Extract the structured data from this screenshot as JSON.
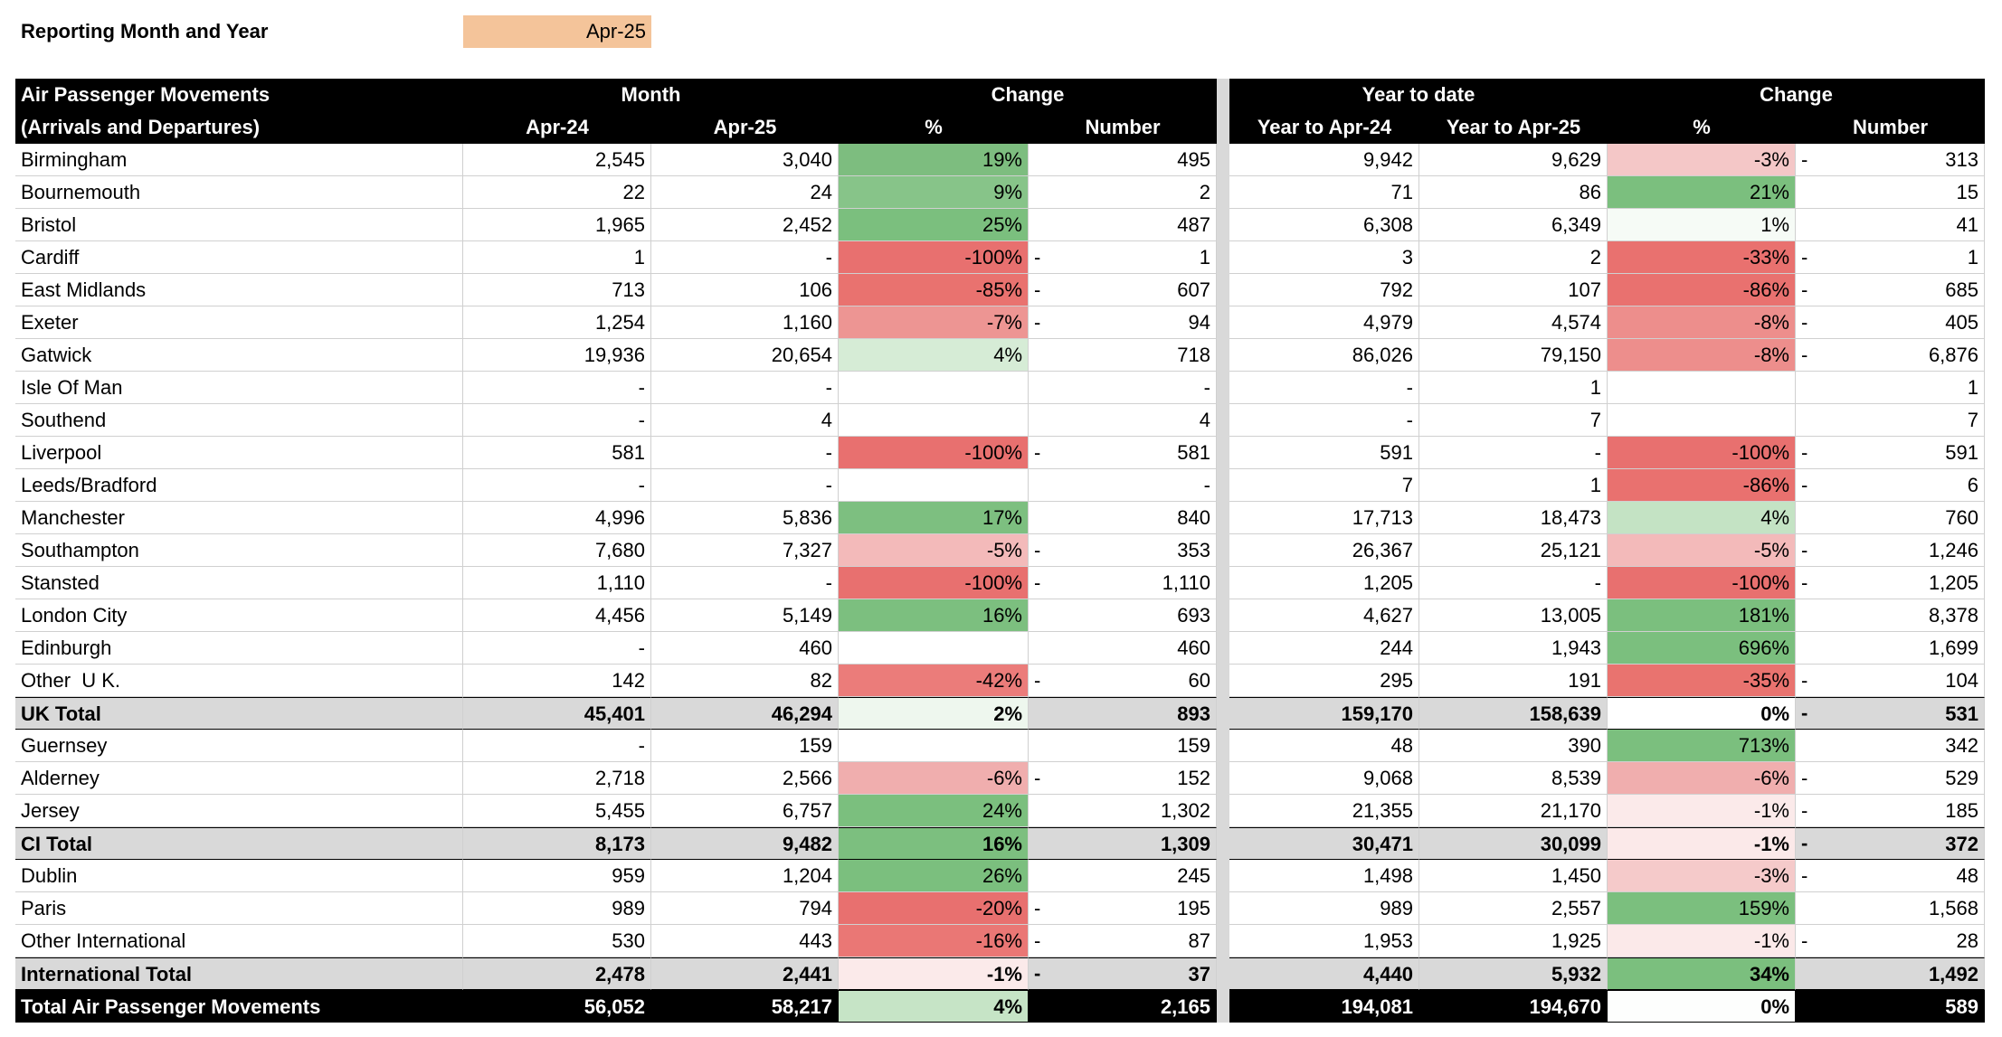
{
  "header": {
    "label": "Reporting Month and Year",
    "value": "Apr-25",
    "value_fill": "#f4c49a"
  },
  "table": {
    "columns": [
      "name",
      "m24",
      "m25",
      "pct",
      "num",
      "ytd24",
      "ytd25",
      "ytdpct",
      "ytdnum"
    ],
    "header_top": [
      {
        "text": "Air Passenger Movements",
        "from": 0,
        "to": 0,
        "align": "left"
      },
      {
        "text": "Month",
        "from": 1,
        "to": 2
      },
      {
        "text": "Change",
        "from": 3,
        "to": 4
      },
      {
        "text": "Year to date",
        "from": 5,
        "to": 6
      },
      {
        "text": "Change",
        "from": 7,
        "to": 8
      }
    ],
    "header_bottom": [
      "(Arrivals and Departures)",
      "Apr-24",
      "Apr-25",
      "%",
      "Number",
      "Year to Apr-24",
      "Year to Apr-25",
      "%",
      "Number"
    ],
    "rows": [
      {
        "name": "Birmingham",
        "m24": "2,545",
        "m25": "3,040",
        "pct": "19%",
        "pct_fill": "#7dbd7f",
        "num": "495",
        "ytd24": "9,942",
        "ytd25": "9,629",
        "ytdpct": "-3%",
        "ytdpct_fill": "#f4c7c7",
        "ytdnum_sign": "-",
        "ytdnum": "313"
      },
      {
        "name": "Bournemouth",
        "m24": "22",
        "m25": "24",
        "pct": "9%",
        "pct_fill": "#87c489",
        "num": "2",
        "ytd24": "71",
        "ytd25": "86",
        "ytdpct": "21%",
        "ytdpct_fill": "#7bbf7e",
        "ytdnum": "15"
      },
      {
        "name": "Bristol",
        "m24": "1,965",
        "m25": "2,452",
        "pct": "25%",
        "pct_fill": "#7bbf7e",
        "num": "487",
        "ytd24": "6,308",
        "ytd25": "6,349",
        "ytdpct": "1%",
        "ytdpct_fill": "#f6fbf6",
        "ytdnum": "41"
      },
      {
        "name": "Cardiff",
        "m24": "1",
        "m25": "-",
        "pct": "-100%",
        "pct_fill": "#e8706f",
        "num_sign": "-",
        "num": "1",
        "ytd24": "3",
        "ytd25": "2",
        "ytdpct": "-33%",
        "ytdpct_fill": "#e9716f",
        "ytdnum_sign": "-",
        "ytdnum": "1"
      },
      {
        "name": "East Midlands",
        "m24": "713",
        "m25": "106",
        "pct": "-85%",
        "pct_fill": "#e9726f",
        "num_sign": "-",
        "num": "607",
        "ytd24": "792",
        "ytd25": "107",
        "ytdpct": "-86%",
        "ytdpct_fill": "#e9716f",
        "ytdnum_sign": "-",
        "ytdnum": "685"
      },
      {
        "name": "Exeter",
        "m24": "1,254",
        "m25": "1,160",
        "pct": "-7%",
        "pct_fill": "#ed9593",
        "num_sign": "-",
        "num": "94",
        "ytd24": "4,979",
        "ytd25": "4,574",
        "ytdpct": "-8%",
        "ytdpct_fill": "#ed8e8c",
        "ytdnum_sign": "-",
        "ytdnum": "405"
      },
      {
        "name": "Gatwick",
        "m24": "19,936",
        "m25": "20,654",
        "pct": "4%",
        "pct_fill": "#d6ecd6",
        "num": "718",
        "ytd24": "86,026",
        "ytd25": "79,150",
        "ytdpct": "-8%",
        "ytdpct_fill": "#ed8e8c",
        "ytdnum_sign": "-",
        "ytdnum": "6,876"
      },
      {
        "name": "Isle Of Man",
        "m24": "-",
        "m25": "-",
        "num": "-",
        "ytd24": "-",
        "ytd25": "1",
        "ytdnum": "1"
      },
      {
        "name": "Southend",
        "m24": "-",
        "m25": "4",
        "num": "4",
        "ytd24": "-",
        "ytd25": "7",
        "ytdnum": "7"
      },
      {
        "name": "Liverpool",
        "m24": "581",
        "m25": "-",
        "pct": "-100%",
        "pct_fill": "#e8706f",
        "num_sign": "-",
        "num": "581",
        "ytd24": "591",
        "ytd25": "-",
        "ytdpct": "-100%",
        "ytdpct_fill": "#e8706f",
        "ytdnum_sign": "-",
        "ytdnum": "591"
      },
      {
        "name": "Leeds/Bradford",
        "m24": "-",
        "m25": "-",
        "num": "-",
        "ytd24": "7",
        "ytd25": "1",
        "ytdpct": "-86%",
        "ytdpct_fill": "#e9716f",
        "ytdnum_sign": "-",
        "ytdnum": "6"
      },
      {
        "name": "Manchester",
        "m24": "4,996",
        "m25": "5,836",
        "pct": "17%",
        "pct_fill": "#7dbf80",
        "num": "840",
        "ytd24": "17,713",
        "ytd25": "18,473",
        "ytdpct": "4%",
        "ytdpct_fill": "#c4e3c4",
        "ytdnum": "760"
      },
      {
        "name": "Southampton",
        "m24": "7,680",
        "m25": "7,327",
        "pct": "-5%",
        "pct_fill": "#f3baba",
        "num_sign": "-",
        "num": "353",
        "ytd24": "26,367",
        "ytd25": "25,121",
        "ytdpct": "-5%",
        "ytdpct_fill": "#f3baba",
        "ytdnum_sign": "-",
        "ytdnum": "1,246"
      },
      {
        "name": "Stansted",
        "m24": "1,110",
        "m25": "-",
        "pct": "-100%",
        "pct_fill": "#e8706f",
        "num_sign": "-",
        "num": "1,110",
        "ytd24": "1,205",
        "ytd25": "-",
        "ytdpct": "-100%",
        "ytdpct_fill": "#e8706f",
        "ytdnum_sign": "-",
        "ytdnum": "1,205"
      },
      {
        "name": "London City",
        "m24": "4,456",
        "m25": "5,149",
        "pct": "16%",
        "pct_fill": "#7cbf7f",
        "num": "693",
        "ytd24": "4,627",
        "ytd25": "13,005",
        "ytdpct": "181%",
        "ytdpct_fill": "#7bbf7e",
        "ytdnum": "8,378"
      },
      {
        "name": "Edinburgh",
        "m24": "-",
        "m25": "460",
        "num": "460",
        "ytd24": "244",
        "ytd25": "1,943",
        "ytdpct": "696%",
        "ytdpct_fill": "#7bbf7e",
        "ytdnum": "1,699"
      },
      {
        "name": "Other  U K.",
        "m24": "142",
        "m25": "82",
        "pct": "-42%",
        "pct_fill": "#eb7c7a",
        "num_sign": "-",
        "num": "60",
        "ytd24": "295",
        "ytd25": "191",
        "ytdpct": "-35%",
        "ytdpct_fill": "#e9736f",
        "ytdnum_sign": "-",
        "ytdnum": "104"
      },
      {
        "name": "UK Total",
        "kind": "total",
        "m24": "45,401",
        "m25": "46,294",
        "pct": "2%",
        "pct_fill": "#eef7ee",
        "num": "893",
        "ytd24": "159,170",
        "ytd25": "158,639",
        "ytdpct": "0%",
        "ytdpct_fill": "#ffffff",
        "ytdnum_sign": "-",
        "ytdnum": "531"
      },
      {
        "name": "Guernsey",
        "m24": "-",
        "m25": "159",
        "num": "159",
        "ytd24": "48",
        "ytd25": "390",
        "ytdpct": "713%",
        "ytdpct_fill": "#7bbf7e",
        "ytdnum": "342"
      },
      {
        "name": "Alderney",
        "m24": "2,718",
        "m25": "2,566",
        "pct": "-6%",
        "pct_fill": "#f0aeae",
        "num_sign": "-",
        "num": "152",
        "ytd24": "9,068",
        "ytd25": "8,539",
        "ytdpct": "-6%",
        "ytdpct_fill": "#f0aeae",
        "ytdnum_sign": "-",
        "ytdnum": "529"
      },
      {
        "name": "Jersey",
        "m24": "5,455",
        "m25": "6,757",
        "pct": "24%",
        "pct_fill": "#7bbf7e",
        "num": "1,302",
        "ytd24": "21,355",
        "ytd25": "21,170",
        "ytdpct": "-1%",
        "ytdpct_fill": "#fbeaea",
        "ytdnum_sign": "-",
        "ytdnum": "185"
      },
      {
        "name": "CI Total",
        "kind": "total",
        "m24": "8,173",
        "m25": "9,482",
        "pct": "16%",
        "pct_fill": "#7cbf7f",
        "num": "1,309",
        "ytd24": "30,471",
        "ytd25": "30,099",
        "ytdpct": "-1%",
        "ytdpct_fill": "#fbe9e9",
        "ytdnum_sign": "-",
        "ytdnum": "372"
      },
      {
        "name": "Dublin",
        "m24": "959",
        "m25": "1,204",
        "pct": "26%",
        "pct_fill": "#7bbf7e",
        "num": "245",
        "ytd24": "1,498",
        "ytd25": "1,450",
        "ytdpct": "-3%",
        "ytdpct_fill": "#f5caca",
        "ytdnum_sign": "-",
        "ytdnum": "48"
      },
      {
        "name": "Paris",
        "m24": "989",
        "m25": "794",
        "pct": "-20%",
        "pct_fill": "#e8706f",
        "num_sign": "-",
        "num": "195",
        "ytd24": "989",
        "ytd25": "2,557",
        "ytdpct": "159%",
        "ytdpct_fill": "#7bbf7e",
        "ytdnum": "1,568"
      },
      {
        "name": "Other International",
        "m24": "530",
        "m25": "443",
        "pct": "-16%",
        "pct_fill": "#ea7775",
        "num_sign": "-",
        "num": "87",
        "ytd24": "1,953",
        "ytd25": "1,925",
        "ytdpct": "-1%",
        "ytdpct_fill": "#fbe9e9",
        "ytdnum_sign": "-",
        "ytdnum": "28"
      },
      {
        "name": "International Total",
        "kind": "total",
        "m24": "2,478",
        "m25": "2,441",
        "pct": "-1%",
        "pct_fill": "#fbeaea",
        "num_sign": "-",
        "num": "37",
        "ytd24": "4,440",
        "ytd25": "5,932",
        "ytdpct": "34%",
        "ytdpct_fill": "#7bbf7e",
        "ytdnum": "1,492"
      },
      {
        "name": "Total Air Passenger Movements",
        "kind": "grand",
        "m24": "56,052",
        "m25": "58,217",
        "pct": "4%",
        "pct_fill": "#c6e4c6",
        "num": "2,165",
        "ytd24": "194,081",
        "ytd25": "194,670",
        "ytdpct": "0%",
        "ytdpct_fill": "#fdfefd",
        "ytdnum": "589"
      }
    ]
  }
}
